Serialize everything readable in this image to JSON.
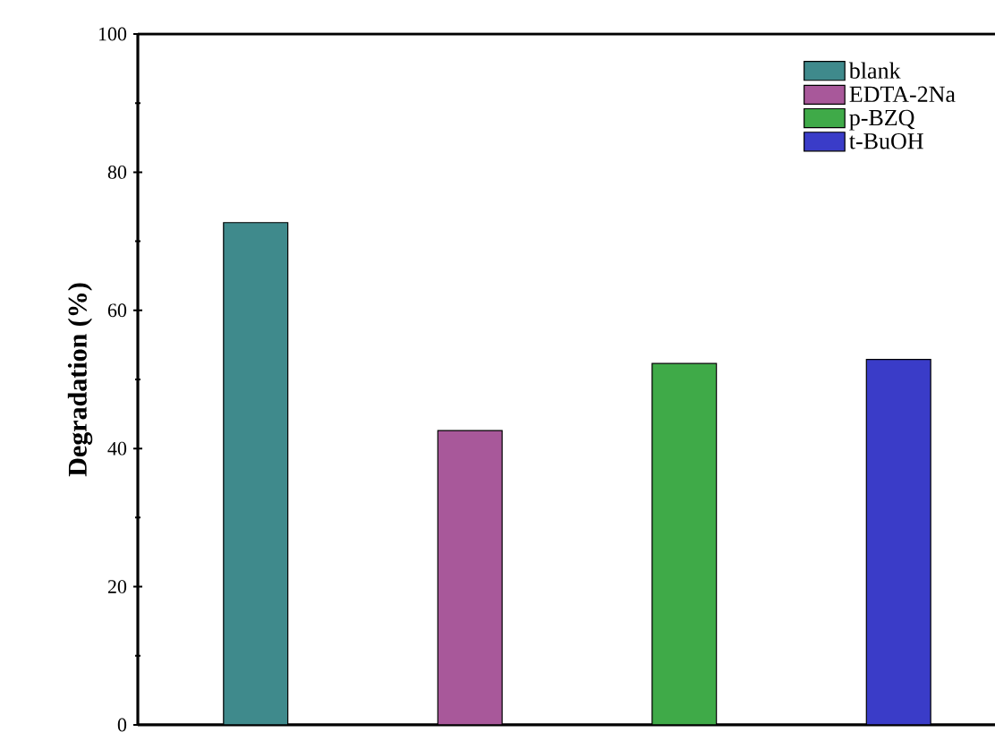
{
  "chart_data": {
    "type": "bar",
    "ylabel": "Degradation (%)",
    "categories": [
      null,
      null,
      null,
      null
    ],
    "series": [
      {
        "name": "blank",
        "color": "#3f8a8c",
        "values": [
          72.7,
          null,
          null,
          null
        ]
      },
      {
        "name": "EDTA-2Na",
        "color": "#a8589a",
        "values": [
          null,
          42.6,
          null,
          null
        ]
      },
      {
        "name": "p-BZQ",
        "color": "#3faa48",
        "values": [
          null,
          null,
          52.3,
          null
        ]
      },
      {
        "name": "t-BuOH",
        "color": "#3a3cc8",
        "values": [
          null,
          null,
          null,
          52.9
        ]
      }
    ],
    "ylim": [
      0,
      100
    ],
    "yticks": [
      0,
      20,
      40,
      60,
      80,
      100
    ],
    "legend": "top right"
  }
}
